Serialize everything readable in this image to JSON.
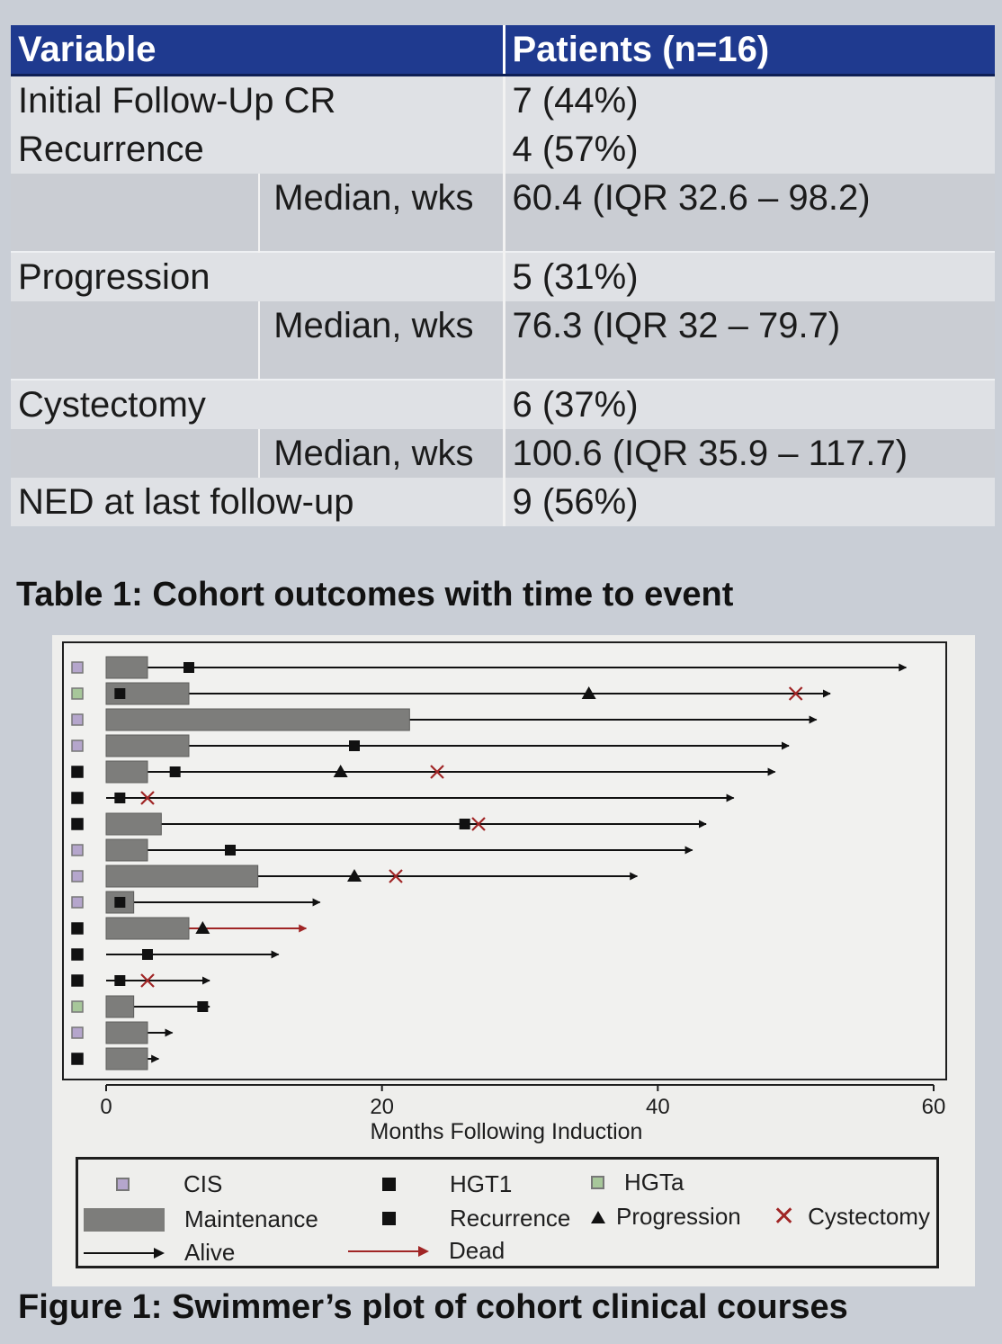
{
  "table": {
    "headers": [
      "Variable",
      "Patients (n=16)"
    ],
    "rows": [
      {
        "variable": "Initial Follow-Up CR",
        "sub": "",
        "value": "7 (44%)"
      },
      {
        "variable": "Recurrence",
        "sub": "",
        "value": "4 (57%)"
      },
      {
        "variable": "",
        "sub": "Median, wks",
        "value": "60.4 (IQR 32.6 – 98.2)"
      },
      {
        "variable": "Progression",
        "sub": "",
        "value": "5 (31%)"
      },
      {
        "variable": "",
        "sub": "Median, wks",
        "value": "76.3 (IQR 32 – 79.7)"
      },
      {
        "variable": "Cystectomy",
        "sub": "",
        "value": "6 (37%)"
      },
      {
        "variable": "",
        "sub": "Median, wks",
        "value": "100.6 (IQR 35.9 – 117.7)"
      },
      {
        "variable": "NED at last follow-up",
        "sub": "",
        "value": "9 (56%)"
      }
    ],
    "caption": "Table 1: Cohort outcomes with time to event"
  },
  "figure": {
    "caption": "Figure 1: Swimmer’s plot of cohort clinical courses"
  },
  "chart_data": {
    "type": "swimmer",
    "title": "",
    "xlabel": "Months Following Induction",
    "ylabel": "",
    "xlim": [
      0,
      60
    ],
    "xticks": [
      0,
      20,
      40,
      60
    ],
    "grid": false,
    "legend": {
      "placement": "bottom",
      "entries": [
        {
          "key": "cis",
          "label": "CIS"
        },
        {
          "key": "maintenance",
          "label": "Maintenance"
        },
        {
          "key": "alive",
          "label": "Alive"
        },
        {
          "key": "hgt1",
          "label": "HGT1"
        },
        {
          "key": "recurrence",
          "label": "Recurrence"
        },
        {
          "key": "dead",
          "label": "Dead"
        },
        {
          "key": "hgta",
          "label": "HGTa"
        },
        {
          "key": "progression",
          "label": "Progression"
        },
        {
          "key": "cystectomy",
          "label": "Cystectomy"
        }
      ]
    },
    "colors": {
      "cis": "#b5a6cc",
      "hgt1": "#111111",
      "hgta": "#a7c79a",
      "maintenance": "#7d7d7b",
      "alive": "#111111",
      "dead": "#a02525",
      "cystectomy": "#a02525",
      "recurrence": "#111111",
      "progression": "#111111"
    },
    "patients": [
      {
        "stage": "cis",
        "maintenance": 3,
        "followup": 58,
        "status": "alive",
        "recurrence": [
          6
        ],
        "progression": [],
        "cystectomy": []
      },
      {
        "stage": "hgta",
        "maintenance": 6,
        "followup": 52.5,
        "status": "alive",
        "recurrence": [
          1
        ],
        "progression": [
          35
        ],
        "cystectomy": [
          50
        ]
      },
      {
        "stage": "cis",
        "maintenance": 22,
        "followup": 51.5,
        "status": "alive",
        "recurrence": [],
        "progression": [],
        "cystectomy": []
      },
      {
        "stage": "cis",
        "maintenance": 6,
        "followup": 49.5,
        "status": "alive",
        "recurrence": [
          18
        ],
        "progression": [],
        "cystectomy": []
      },
      {
        "stage": "hgt1",
        "maintenance": 3,
        "followup": 48.5,
        "status": "alive",
        "recurrence": [
          5
        ],
        "progression": [
          17
        ],
        "cystectomy": [
          24
        ]
      },
      {
        "stage": "hgt1",
        "maintenance": 0,
        "followup": 45.5,
        "status": "alive",
        "recurrence": [
          1
        ],
        "progression": [],
        "cystectomy": [
          3
        ]
      },
      {
        "stage": "hgt1",
        "maintenance": 4,
        "followup": 43.5,
        "status": "alive",
        "recurrence": [
          26
        ],
        "progression": [],
        "cystectomy": [
          27
        ]
      },
      {
        "stage": "cis",
        "maintenance": 3,
        "followup": 42.5,
        "status": "alive",
        "recurrence": [
          9
        ],
        "progression": [],
        "cystectomy": []
      },
      {
        "stage": "cis",
        "maintenance": 11,
        "followup": 38.5,
        "status": "alive",
        "recurrence": [],
        "progression": [
          18
        ],
        "cystectomy": [
          21
        ]
      },
      {
        "stage": "cis",
        "maintenance": 2,
        "followup": 15.5,
        "status": "alive",
        "recurrence": [
          1
        ],
        "progression": [],
        "cystectomy": []
      },
      {
        "stage": "hgt1",
        "maintenance": 6,
        "followup": 14.5,
        "status": "dead",
        "recurrence": [],
        "progression": [
          7
        ],
        "cystectomy": []
      },
      {
        "stage": "hgt1",
        "maintenance": 0,
        "followup": 12.5,
        "status": "alive",
        "recurrence": [
          3
        ],
        "progression": [],
        "cystectomy": []
      },
      {
        "stage": "hgt1",
        "maintenance": 0,
        "followup": 7.5,
        "status": "alive",
        "recurrence": [
          1
        ],
        "progression": [],
        "cystectomy": [
          3
        ]
      },
      {
        "stage": "hgta",
        "maintenance": 2,
        "followup": 7.5,
        "status": "alive",
        "recurrence": [
          7
        ],
        "progression": [],
        "cystectomy": []
      },
      {
        "stage": "cis",
        "maintenance": 3,
        "followup": 4.8,
        "status": "alive",
        "recurrence": [],
        "progression": [],
        "cystectomy": []
      },
      {
        "stage": "hgt1",
        "maintenance": 3,
        "followup": 3.8,
        "status": "alive",
        "recurrence": [],
        "progression": [],
        "cystectomy": []
      }
    ]
  }
}
